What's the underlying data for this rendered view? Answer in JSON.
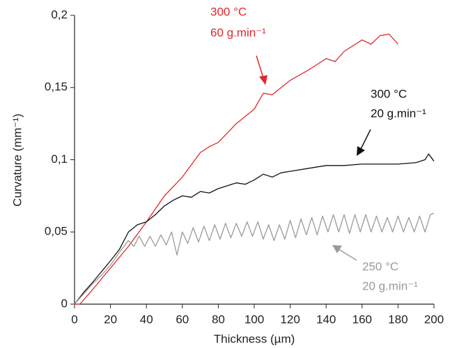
{
  "chart_data": {
    "type": "line",
    "xlabel": "Thickness (µm)",
    "ylabel": "Curvature (mm⁻¹)",
    "xlim": [
      0,
      200
    ],
    "xticks": [
      0,
      20,
      40,
      60,
      80,
      100,
      120,
      140,
      160,
      180,
      200
    ],
    "ylim": [
      0,
      0.2
    ],
    "yticks": [
      0,
      {
        "value": 0.05,
        "label": "0,05"
      },
      {
        "value": 0.1,
        "label": "0,1"
      },
      {
        "value": 0.15,
        "label": "0,15"
      },
      {
        "value": 0.2,
        "label": "0,2"
      }
    ],
    "annotations": [
      "300 °C",
      "60 g.min⁻¹",
      "300 °C",
      "20 g.min⁻¹",
      "250 °C",
      "20 g.min⁻¹"
    ],
    "series": [
      {
        "color": "#e3262c",
        "x": [
          0,
          3,
          10,
          20,
          30,
          40,
          50,
          60,
          70,
          75,
          80,
          90,
          100,
          105,
          110,
          120,
          130,
          140,
          145,
          150,
          160,
          165,
          170,
          175,
          180
        ],
        "values": [
          0,
          0,
          0.01,
          0.025,
          0.04,
          0.057,
          0.075,
          0.088,
          0.105,
          0.109,
          0.112,
          0.125,
          0.135,
          0.146,
          0.145,
          0.155,
          0.162,
          0.17,
          0.168,
          0.175,
          0.183,
          0.18,
          0.186,
          0.187,
          0.18
        ]
      },
      {
        "color": "#111111",
        "x": [
          0,
          5,
          10,
          20,
          25,
          30,
          35,
          40,
          45,
          50,
          55,
          60,
          65,
          70,
          75,
          80,
          85,
          90,
          95,
          100,
          105,
          110,
          115,
          120,
          130,
          140,
          150,
          160,
          170,
          180,
          190,
          195,
          197,
          200
        ],
        "values": [
          0,
          0.008,
          0.015,
          0.03,
          0.038,
          0.05,
          0.055,
          0.057,
          0.062,
          0.068,
          0.072,
          0.075,
          0.074,
          0.078,
          0.077,
          0.08,
          0.082,
          0.084,
          0.083,
          0.086,
          0.09,
          0.088,
          0.091,
          0.092,
          0.094,
          0.096,
          0.096,
          0.097,
          0.097,
          0.097,
          0.098,
          0.1,
          0.104,
          0.099
        ]
      },
      {
        "color": "#9a9a9a",
        "x": [
          0,
          5,
          10,
          15,
          20,
          25,
          30,
          33,
          36,
          39,
          42,
          45,
          48,
          51,
          54,
          57,
          60,
          63,
          66,
          69,
          72,
          75,
          78,
          81,
          84,
          87,
          90,
          93,
          96,
          99,
          102,
          105,
          108,
          111,
          114,
          117,
          120,
          123,
          126,
          129,
          132,
          135,
          138,
          141,
          144,
          147,
          150,
          153,
          156,
          159,
          162,
          165,
          168,
          171,
          174,
          177,
          180,
          183,
          186,
          189,
          192,
          195,
          198,
          200
        ],
        "values": [
          0,
          0.007,
          0.014,
          0.02,
          0.027,
          0.036,
          0.044,
          0.04,
          0.047,
          0.04,
          0.047,
          0.04,
          0.048,
          0.041,
          0.05,
          0.034,
          0.05,
          0.042,
          0.053,
          0.043,
          0.054,
          0.044,
          0.055,
          0.045,
          0.056,
          0.046,
          0.056,
          0.047,
          0.057,
          0.047,
          0.057,
          0.045,
          0.055,
          0.044,
          0.055,
          0.045,
          0.058,
          0.046,
          0.059,
          0.048,
          0.06,
          0.048,
          0.061,
          0.05,
          0.062,
          0.05,
          0.062,
          0.049,
          0.062,
          0.05,
          0.062,
          0.05,
          0.061,
          0.05,
          0.06,
          0.05,
          0.061,
          0.05,
          0.06,
          0.05,
          0.061,
          0.05,
          0.062,
          0.063
        ]
      }
    ]
  }
}
